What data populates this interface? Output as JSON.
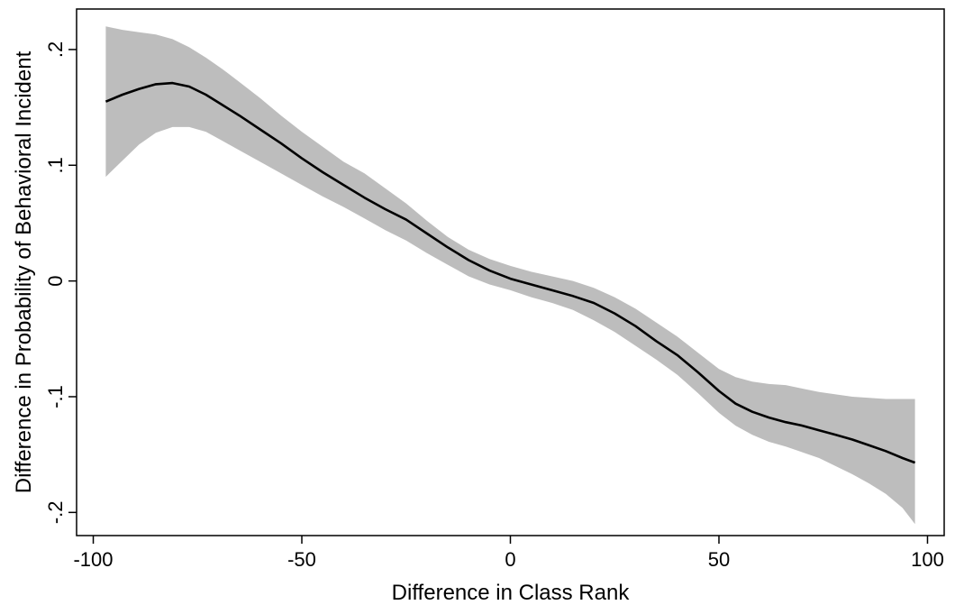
{
  "chart_data": {
    "type": "line",
    "title": "",
    "xlabel": "Difference in Class Rank",
    "ylabel": "Difference in Probability of Behavioral Incident",
    "xlim": [
      -104,
      104
    ],
    "ylim": [
      -0.22,
      0.235
    ],
    "xticks": [
      -100,
      -50,
      0,
      50,
      100
    ],
    "xtick_labels": [
      "-100",
      "-50",
      "0",
      "50",
      "100"
    ],
    "yticks": [
      -0.2,
      -0.1,
      0,
      0.1,
      0.2
    ],
    "ytick_labels": [
      "-.2",
      "-.1",
      "0",
      ".1",
      ".2"
    ],
    "grid": false,
    "legend": "none",
    "colors": {
      "line": "#000000",
      "band": "#bdbdbd",
      "frame": "#000000"
    },
    "x": [
      -97,
      -93,
      -89,
      -85,
      -81,
      -77,
      -73,
      -69,
      -65,
      -60,
      -55,
      -50,
      -45,
      -40,
      -35,
      -30,
      -25,
      -20,
      -15,
      -10,
      -5,
      0,
      5,
      10,
      15,
      20,
      25,
      30,
      35,
      40,
      45,
      50,
      54,
      58,
      62,
      66,
      70,
      74,
      78,
      82,
      86,
      90,
      94,
      97
    ],
    "series": [
      {
        "values": [
          0.155,
          0.161,
          0.166,
          0.17,
          0.171,
          0.168,
          0.161,
          0.152,
          0.143,
          0.131,
          0.119,
          0.106,
          0.094,
          0.083,
          0.072,
          0.062,
          0.053,
          0.041,
          0.029,
          0.018,
          0.009,
          0.002,
          -0.003,
          -0.008,
          -0.013,
          -0.019,
          -0.028,
          -0.039,
          -0.052,
          -0.064,
          -0.079,
          -0.095,
          -0.106,
          -0.113,
          -0.118,
          -0.122,
          -0.125,
          -0.129,
          -0.133,
          -0.137,
          -0.142,
          -0.147,
          -0.153,
          -0.157
        ]
      }
    ],
    "ci_upper": [
      0.22,
      0.217,
      0.215,
      0.213,
      0.209,
      0.202,
      0.193,
      0.183,
      0.172,
      0.158,
      0.143,
      0.129,
      0.116,
      0.103,
      0.093,
      0.08,
      0.067,
      0.052,
      0.038,
      0.027,
      0.019,
      0.013,
      0.008,
      0.004,
      0.0,
      -0.006,
      -0.014,
      -0.024,
      -0.036,
      -0.048,
      -0.062,
      -0.076,
      -0.083,
      -0.087,
      -0.089,
      -0.09,
      -0.093,
      -0.096,
      -0.098,
      -0.1,
      -0.101,
      -0.102,
      -0.102,
      -0.102
    ],
    "ci_lower": [
      0.09,
      0.104,
      0.118,
      0.128,
      0.133,
      0.133,
      0.129,
      0.121,
      0.113,
      0.103,
      0.093,
      0.083,
      0.073,
      0.064,
      0.054,
      0.044,
      0.035,
      0.024,
      0.014,
      0.004,
      -0.003,
      -0.008,
      -0.014,
      -0.019,
      -0.025,
      -0.034,
      -0.044,
      -0.056,
      -0.068,
      -0.081,
      -0.097,
      -0.114,
      -0.125,
      -0.133,
      -0.139,
      -0.143,
      -0.148,
      -0.153,
      -0.16,
      -0.167,
      -0.175,
      -0.184,
      -0.196,
      -0.21
    ]
  }
}
